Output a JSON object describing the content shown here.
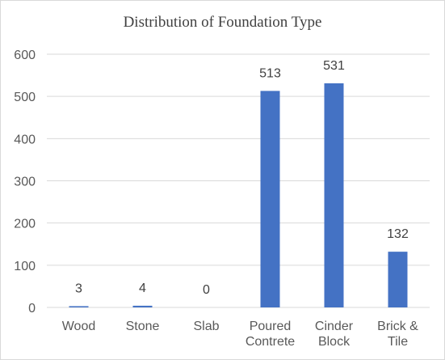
{
  "chart_data": {
    "type": "bar",
    "title": "Distribution of Foundation Type",
    "categories": [
      [
        "Wood"
      ],
      [
        "Stone"
      ],
      [
        "Slab"
      ],
      [
        "Poured",
        "Contrete"
      ],
      [
        "Cinder",
        "Block"
      ],
      [
        "Brick &",
        "Tile"
      ]
    ],
    "values": [
      3,
      4,
      0,
      513,
      531,
      132
    ],
    "ylim": [
      0,
      600
    ],
    "yticks": [
      0,
      100,
      200,
      300,
      400,
      500,
      600
    ],
    "grid": true,
    "legend": "none",
    "bar_color": "#4472c4",
    "grid_color": "#d9d9d9"
  }
}
